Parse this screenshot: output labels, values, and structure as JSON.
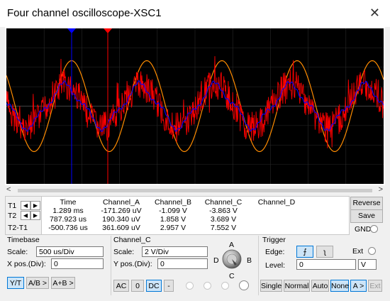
{
  "window": {
    "title": "Four channel oscilloscope-XSC1",
    "close_glyph": "✕"
  },
  "scope": {
    "background": "#000000",
    "trace_colors": {
      "A": "#ff0000",
      "B": "#0000ff",
      "C": "#ff8c00"
    },
    "cursor_colors": {
      "T1": "#0000ff",
      "T2": "#ff0000"
    }
  },
  "readout": {
    "row_labels": [
      "T1",
      "T2",
      "T2-T1"
    ],
    "headers": {
      "time": "Time",
      "a": "Channel_A",
      "b": "Channel_B",
      "c": "Channel_C",
      "d": "Channel_D"
    },
    "time": [
      "1.289 ms",
      "787.923 us",
      "-500.736 us"
    ],
    "a": [
      "-171.269 uV",
      "190.340 uV",
      "361.609 uV"
    ],
    "b": [
      "-1.099 V",
      "1.858 V",
      "2.957 V"
    ],
    "c": [
      "-3.863 V",
      "3.689 V",
      "7.552 V"
    ],
    "d": [
      "",
      "",
      ""
    ],
    "arrow_left": "◀",
    "arrow_right": "▶"
  },
  "side_buttons": {
    "reverse": "Reverse",
    "save": "Save",
    "gnd": "GND"
  },
  "timebase": {
    "title": "Timebase",
    "scale_label": "Scale:",
    "scale_value": "500 us/Div",
    "xpos_label": "X pos.(Div):",
    "xpos_value": "0",
    "modes": [
      "Y/T",
      "A/B >",
      "A+B >"
    ]
  },
  "channel": {
    "title": "Channel_C",
    "scale_label": "Scale:",
    "scale_value": "2  V/Div",
    "ypos_label": "Y pos.(Div):",
    "ypos_value": "0",
    "coupling": [
      "AC",
      "0",
      "DC",
      "-"
    ],
    "knob_labels": {
      "a": "A",
      "b": "B",
      "c": "C",
      "d": "D"
    }
  },
  "trigger": {
    "title": "Trigger",
    "edge_label": "Edge:",
    "rise_glyph": "⨍",
    "fall_glyph": "ʅ",
    "ext_label": "Ext",
    "level_label": "Level:",
    "level_value": "0",
    "level_unit": "V",
    "modes": [
      "Single",
      "Normal",
      "Auto",
      "None",
      "A >",
      "Ext"
    ]
  }
}
